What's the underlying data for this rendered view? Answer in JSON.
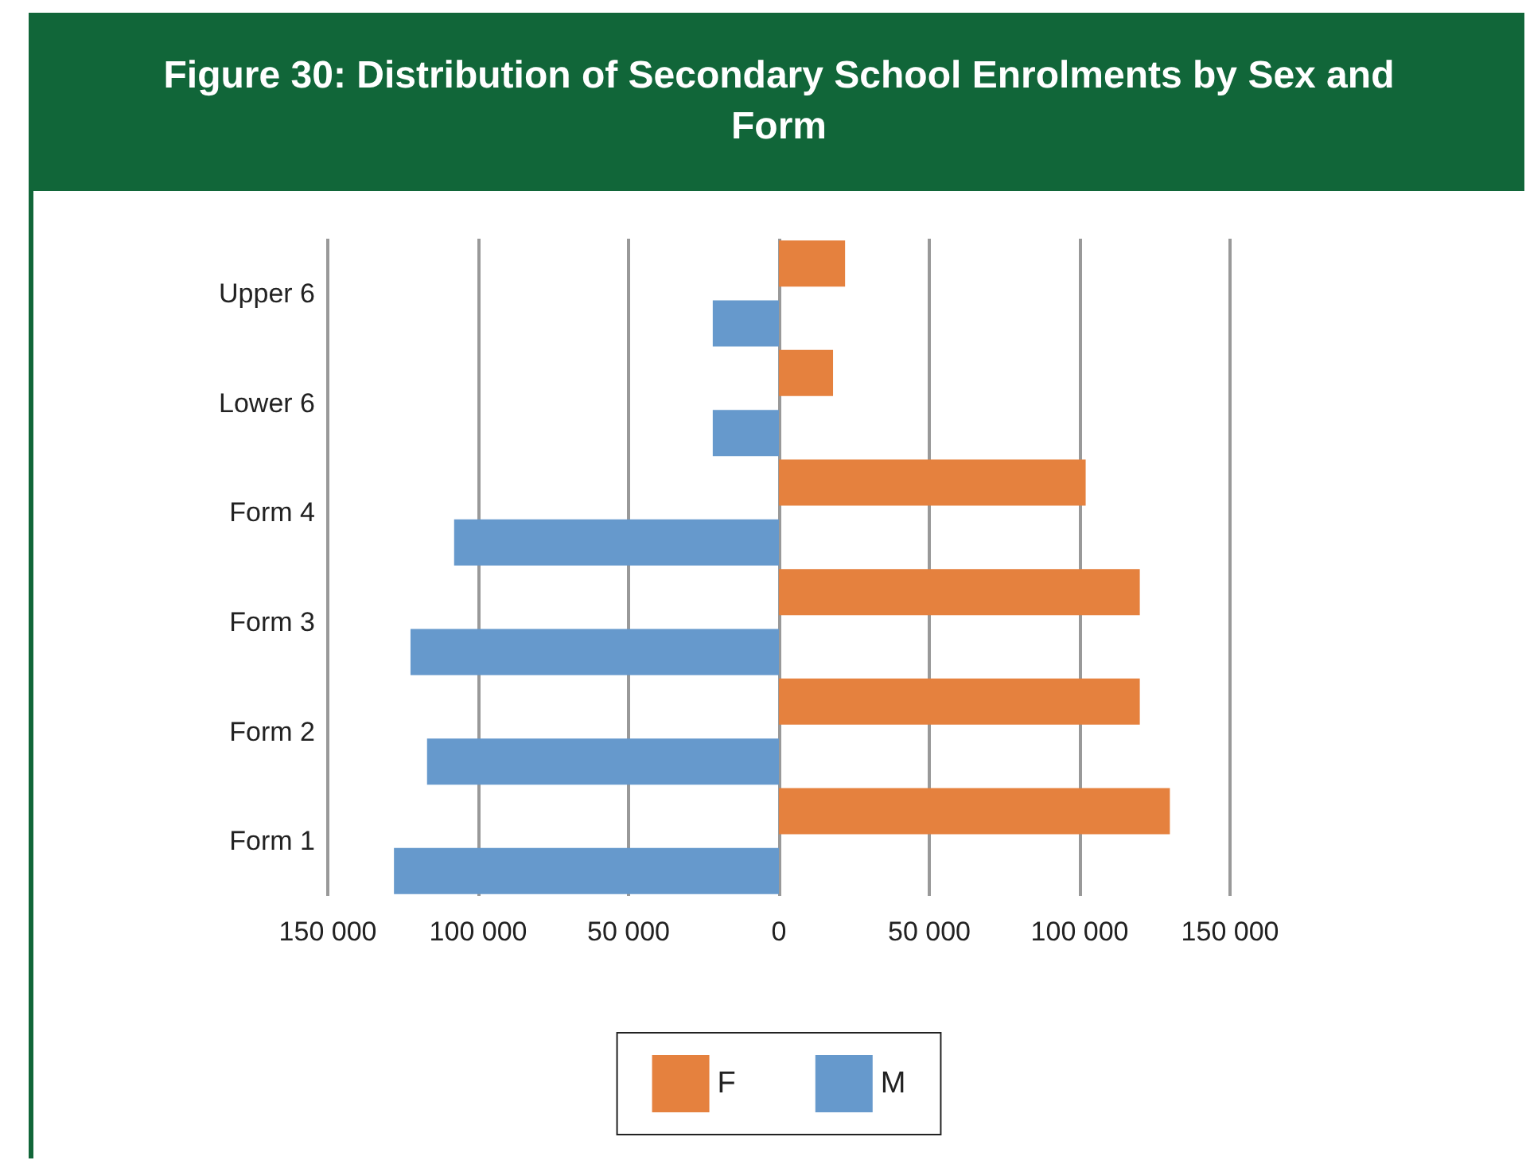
{
  "chart_data": {
    "type": "bar",
    "orientation": "horizontal",
    "title": "Figure 30: Distribution of Secondary School Enrolments by Sex and Form",
    "categories": [
      "Upper 6",
      "Lower 6",
      "Form 4",
      "Form 3",
      "Form 2",
      "Form 1"
    ],
    "series": [
      {
        "name": "F",
        "color": "#e5813e",
        "values": [
          22000,
          18000,
          102000,
          120000,
          120000,
          130000
        ]
      },
      {
        "name": "M",
        "color": "#6699cc",
        "values": [
          -22000,
          -22000,
          -108000,
          -122500,
          -117000,
          -128000
        ]
      }
    ],
    "xlim": [
      -150000,
      150000
    ],
    "xticks": [
      {
        "value": -150000,
        "label": "150 000"
      },
      {
        "value": -100000,
        "label": "100 000"
      },
      {
        "value": -50000,
        "label": "50 000"
      },
      0,
      {
        "value": 50000,
        "label": "50 000"
      },
      {
        "value": 100000,
        "label": "100 000"
      },
      {
        "value": 150000,
        "label": "150 000"
      }
    ],
    "grid": "x",
    "legend": "bottom"
  }
}
